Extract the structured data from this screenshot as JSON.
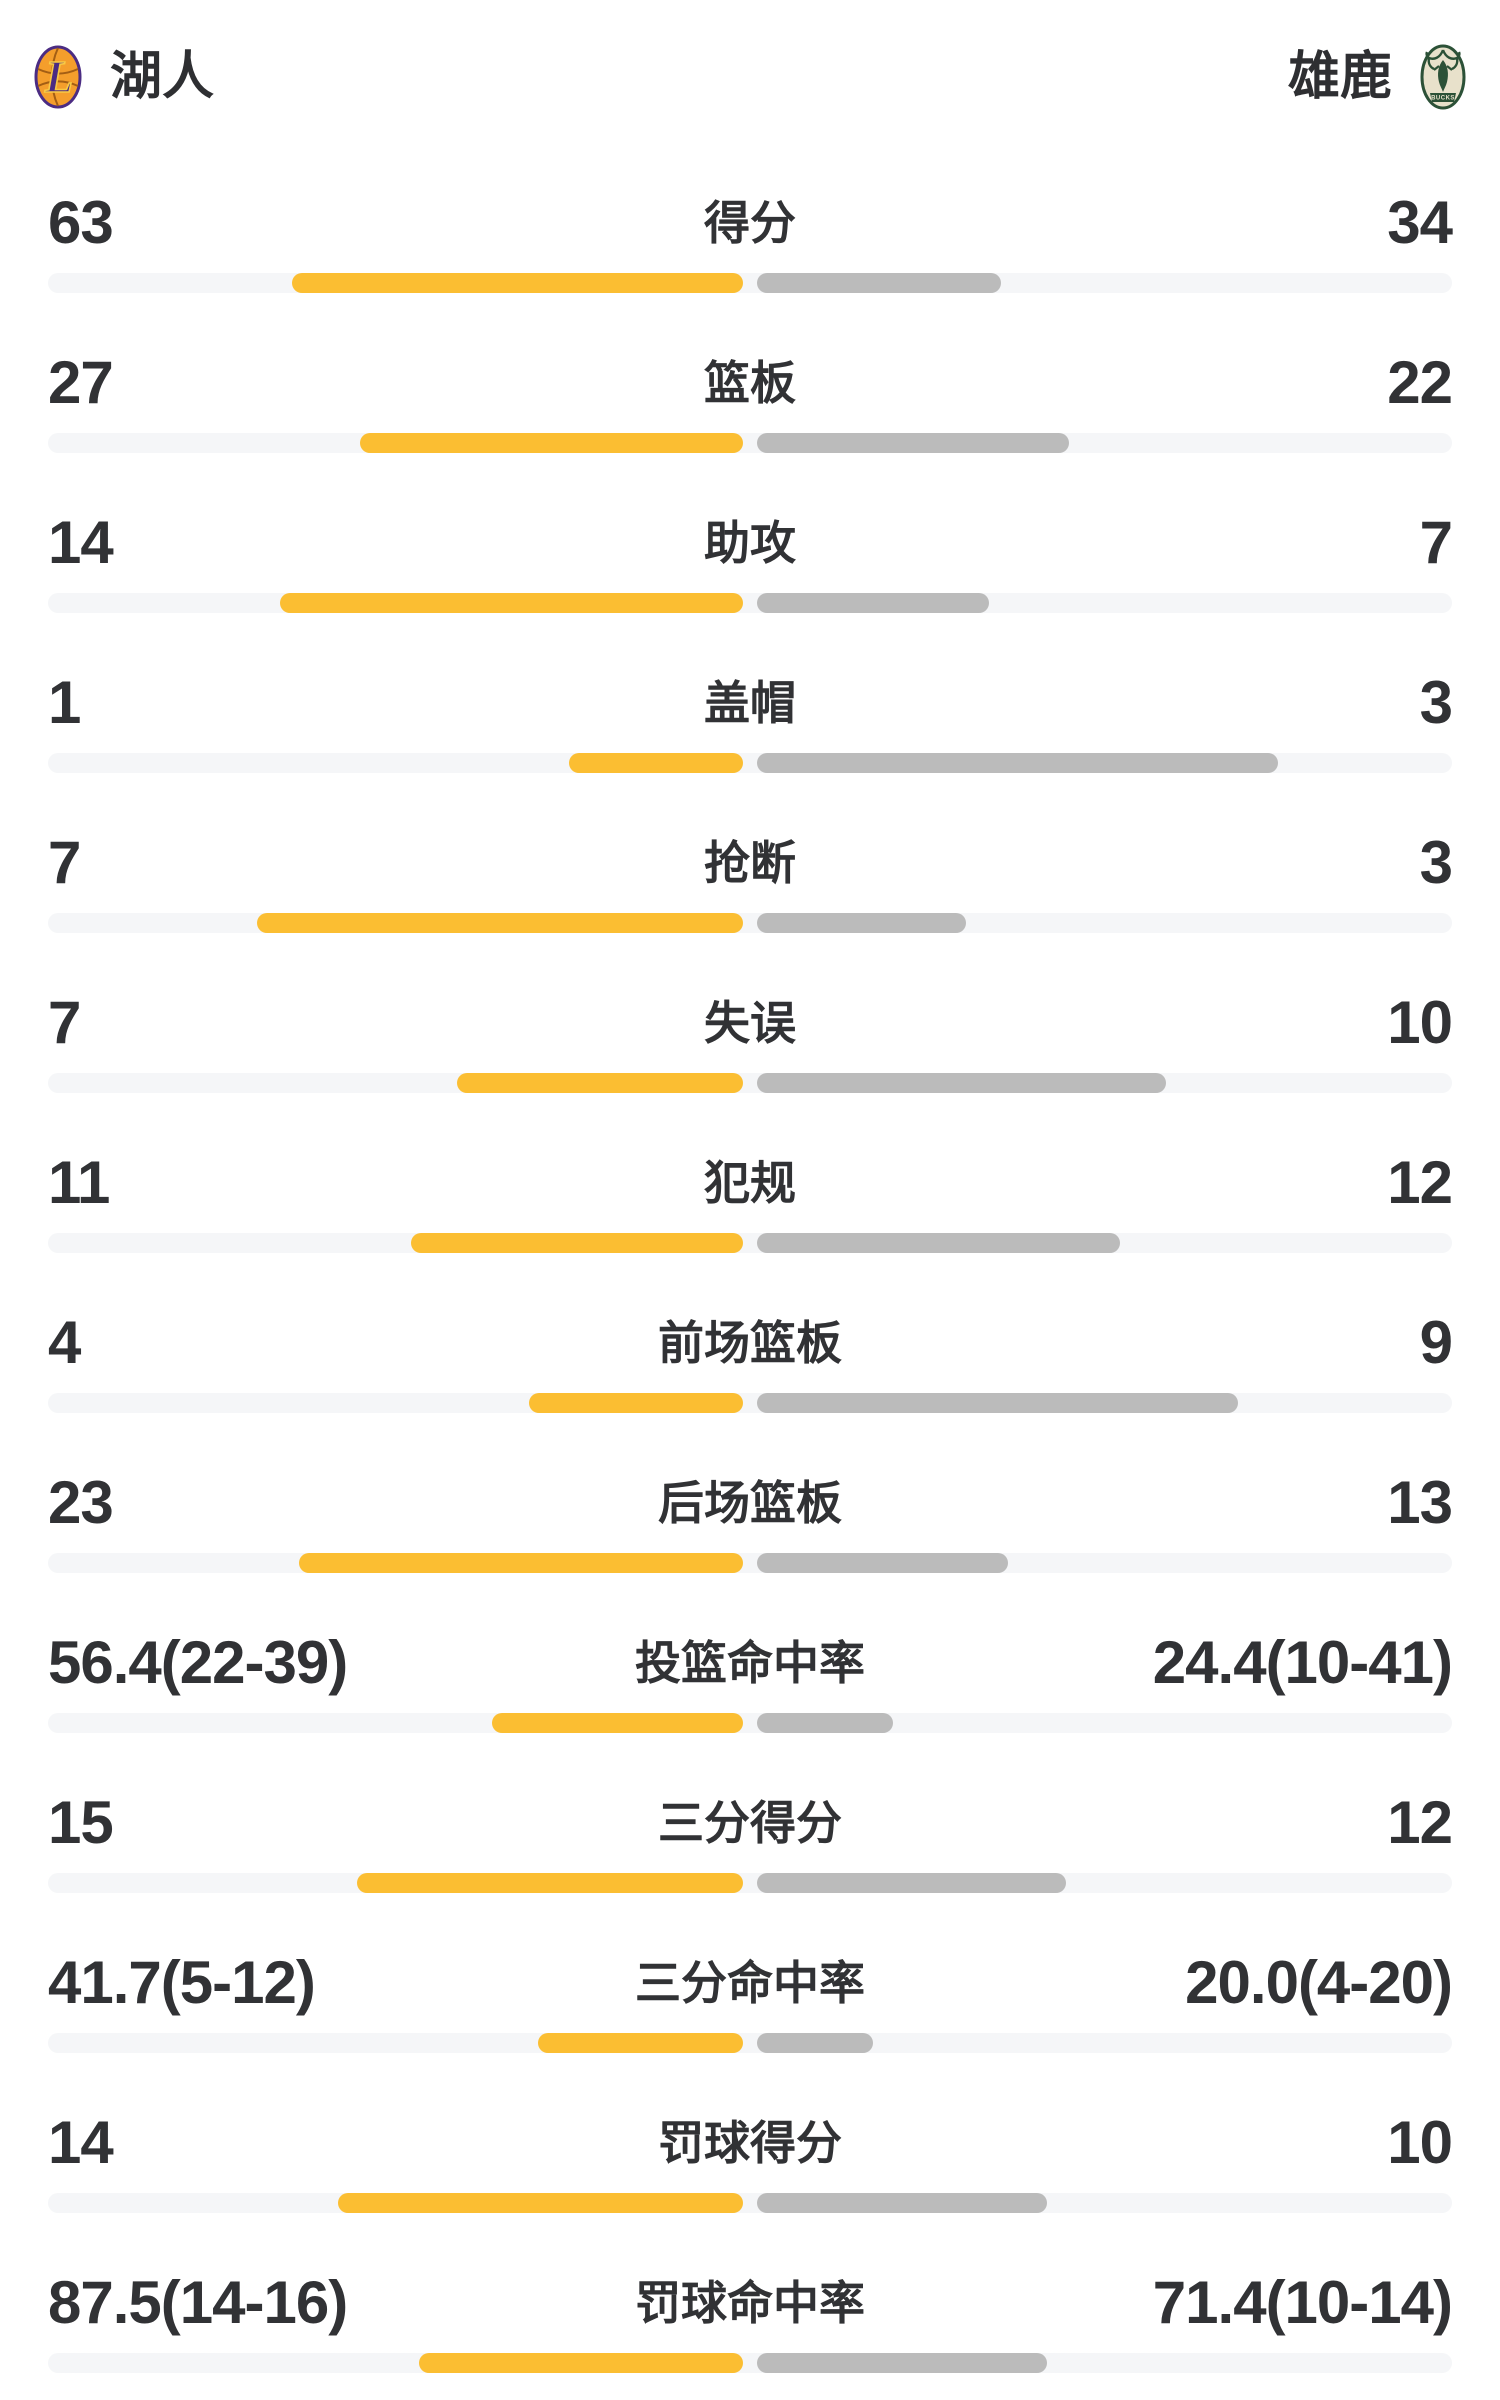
{
  "header": {
    "left_team": {
      "name": "湖人",
      "logo_text": "L"
    },
    "right_team": {
      "name": "雄鹿",
      "logo_text": "BUCKS"
    }
  },
  "colors": {
    "left_bar": "#FBBE32",
    "right_bar": "#BBBBBB",
    "bar_track": "#F5F6F8",
    "text": "#2E2F32",
    "lakers_purple": "#4B2C83",
    "lakers_orange": "#F49E2C",
    "lakers_gold": "#F7C945",
    "bucks_green": "#2C5137",
    "bucks_cream": "#E8E1CB"
  },
  "chart_data": {
    "type": "bar",
    "orientation": "paired-horizontal-from-center",
    "teams": [
      "湖人",
      "雄鹿"
    ],
    "legend_position": "top",
    "rows": [
      {
        "label": "得分",
        "left_display": "63",
        "right_display": "34",
        "left_value": 63,
        "right_value": 34,
        "type": "count"
      },
      {
        "label": "篮板",
        "left_display": "27",
        "right_display": "22",
        "left_value": 27,
        "right_value": 22,
        "type": "count"
      },
      {
        "label": "助攻",
        "left_display": "14",
        "right_display": "7",
        "left_value": 14,
        "right_value": 7,
        "type": "count"
      },
      {
        "label": "盖帽",
        "left_display": "1",
        "right_display": "3",
        "left_value": 1,
        "right_value": 3,
        "type": "count"
      },
      {
        "label": "抢断",
        "left_display": "7",
        "right_display": "3",
        "left_value": 7,
        "right_value": 3,
        "type": "count"
      },
      {
        "label": "失误",
        "left_display": "7",
        "right_display": "10",
        "left_value": 7,
        "right_value": 10,
        "type": "count"
      },
      {
        "label": "犯规",
        "left_display": "11",
        "right_display": "12",
        "left_value": 11,
        "right_value": 12,
        "type": "count"
      },
      {
        "label": "前场篮板",
        "left_display": "4",
        "right_display": "9",
        "left_value": 4,
        "right_value": 9,
        "type": "count"
      },
      {
        "label": "后场篮板",
        "left_display": "23",
        "right_display": "13",
        "left_value": 23,
        "right_value": 13,
        "type": "count"
      },
      {
        "label": "投篮命中率",
        "left_display": "56.4(22-39)",
        "right_display": "24.4(10-41)",
        "left_value": 56.4,
        "right_value": 24.4,
        "type": "percent"
      },
      {
        "label": "三分得分",
        "left_display": "15",
        "right_display": "12",
        "left_value": 15,
        "right_value": 12,
        "type": "count"
      },
      {
        "label": "三分命中率",
        "left_display": "41.7(5-12)",
        "right_display": "20.0(4-20)",
        "left_value": 41.7,
        "right_value": 20.0,
        "type": "percent"
      },
      {
        "label": "罚球得分",
        "left_display": "14",
        "right_display": "10",
        "left_value": 14,
        "right_value": 10,
        "type": "count"
      },
      {
        "label": "罚球命中率",
        "left_display": "87.5(14-16)",
        "right_display": "71.4(10-14)",
        "left_value": 87.5,
        "right_value": 71.4,
        "type": "percent"
      }
    ]
  }
}
